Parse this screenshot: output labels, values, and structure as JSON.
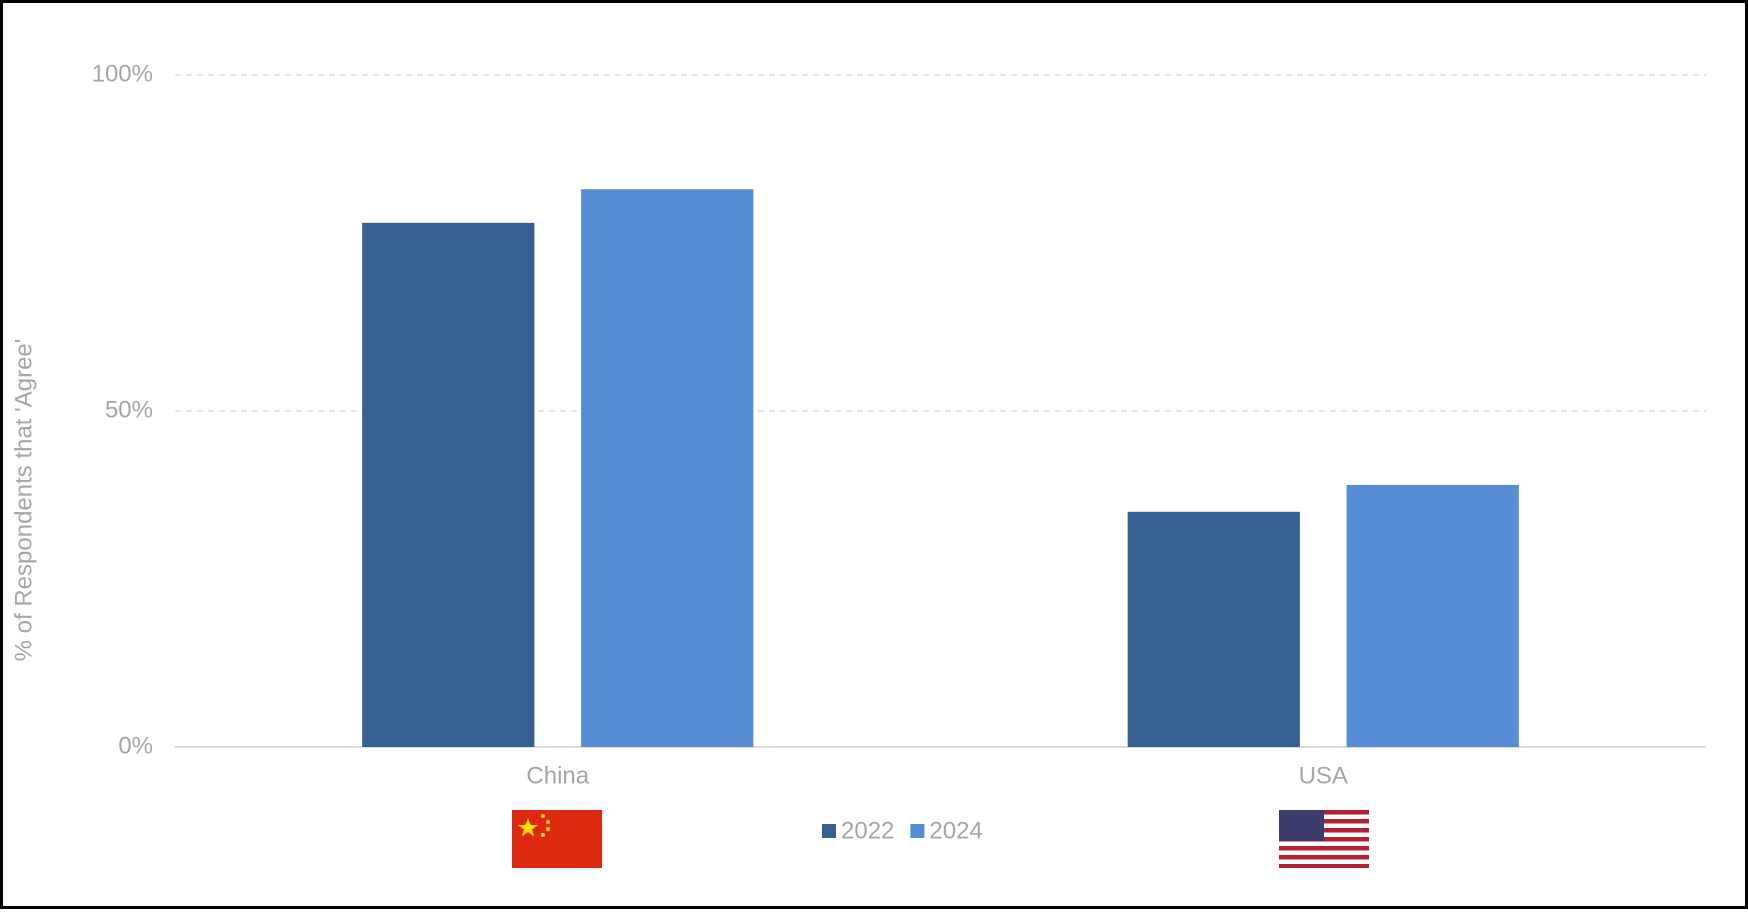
{
  "chart_data": {
    "type": "bar",
    "y_label": "% of Respondents that 'Agree'",
    "categories": [
      "China",
      "USA"
    ],
    "series": [
      {
        "name": "2022",
        "color": "#376092",
        "values": [
          78,
          35
        ]
      },
      {
        "name": "2024",
        "color": "#558ed5",
        "values": [
          83,
          39
        ]
      }
    ],
    "ylim": [
      0,
      100
    ],
    "yticks": [
      {
        "value": 0,
        "label": "0%"
      },
      {
        "value": 50,
        "label": "50%"
      },
      {
        "value": 100,
        "label": "100%"
      }
    ],
    "grid": true
  }
}
